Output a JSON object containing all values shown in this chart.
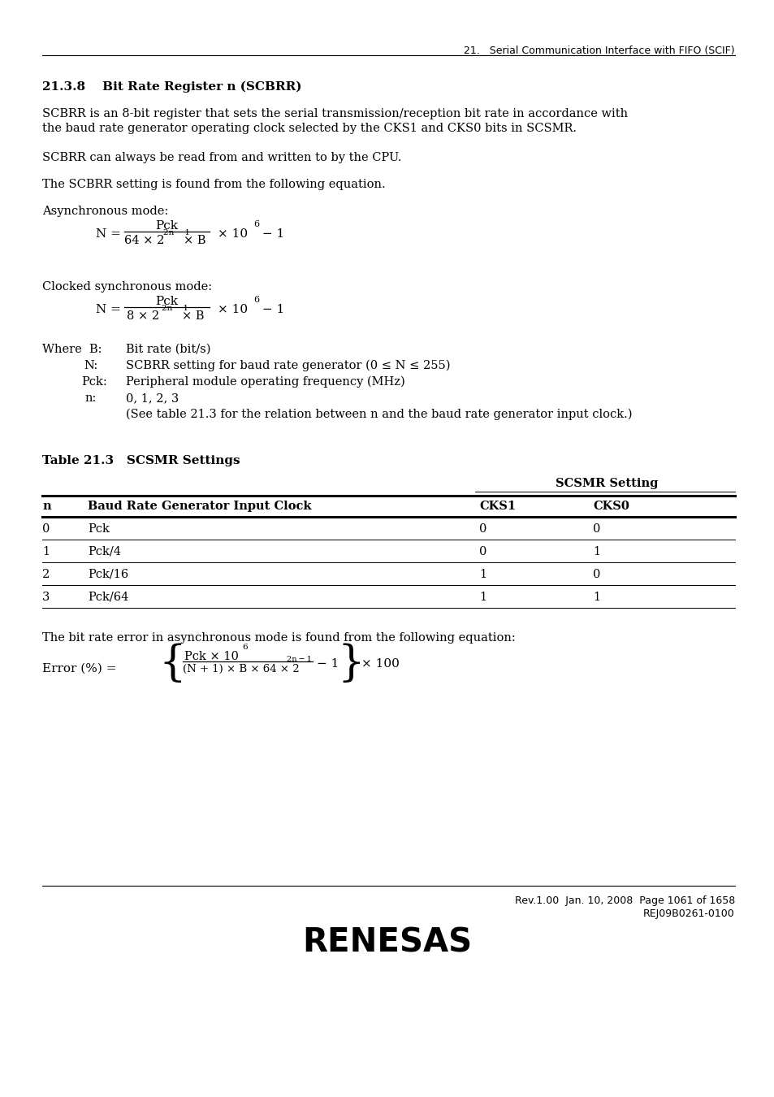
{
  "header_text": "21.   Serial Communication Interface with FIFO (SCIF)",
  "section_title_num": "21.3.8",
  "section_title_rest": "Bit Rate Register n (SCBRR)",
  "para1_line1": "SCBRR is an 8-bit register that sets the serial transmission/reception bit rate in accordance with",
  "para1_line2": "the baud rate generator operating clock selected by the CKS1 and CKS0 bits in SCSMR.",
  "para2": "SCBRR can always be read from and written to by the CPU.",
  "para3": "The SCBRR setting is found from the following equation.",
  "async_label": "Asynchronous mode:",
  "clocked_label": "Clocked synchronous mode:",
  "table_title": "Table 21.3   SCSMR Settings",
  "table_rows": [
    [
      "0",
      "Pck",
      "0",
      "0"
    ],
    [
      "1",
      "Pck/4",
      "0",
      "1"
    ],
    [
      "2",
      "Pck/16",
      "1",
      "0"
    ],
    [
      "3",
      "Pck/64",
      "1",
      "1"
    ]
  ],
  "bit_rate_error_text": "The bit rate error in asynchronous mode is found from the following equation:",
  "footer_text1": "Rev.1.00  Jan. 10, 2008  Page 1061 of 1658",
  "footer_text2": "REJ09B0261-0100",
  "bg_color": "#ffffff",
  "text_color": "#000000"
}
